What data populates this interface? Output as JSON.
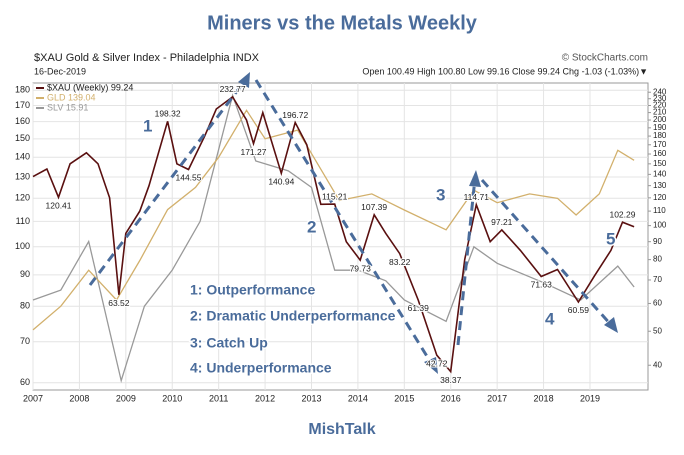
{
  "chart_data": {
    "type": "line",
    "title": "Miners vs the Metals Weekly",
    "symbol_line": "$XAU Gold & Silver Index - Philadelphia INDX",
    "date": "16-Dec-2019",
    "quote": "Open 100.49 High 100.80 Low 99.16 Close 99.24 Chg -1.03 (-1.03%)▼",
    "source": "© StockCharts.com",
    "footer": "MishTalk",
    "annotations": [
      {
        "text": "1"
      },
      {
        "text": "2"
      },
      {
        "text": "3"
      },
      {
        "text": "4"
      },
      {
        "text": "5"
      },
      {
        "text": "1: Outperformance"
      },
      {
        "text": "2: Dramatic Underperformance"
      },
      {
        "text": "3: Catch Up"
      },
      {
        "text": "4: Underperformance"
      }
    ],
    "log_scale": true,
    "grid": true,
    "legend": "upper left",
    "xlim": [
      2007,
      2020.25
    ],
    "xticks": [
      2007,
      2008,
      2009,
      2010,
      2011,
      2012,
      2013,
      2014,
      2015,
      2016,
      2017,
      2018,
      2019
    ],
    "ylim": [
      58.4,
      185
    ],
    "yticks": [
      60,
      70,
      80,
      90,
      100,
      110,
      120,
      130,
      140,
      150,
      160,
      170,
      180
    ],
    "y2lim": [
      34,
      255
    ],
    "y2ticks": [
      40,
      50,
      60,
      70,
      80,
      90,
      100,
      110,
      120,
      130,
      140,
      150,
      160,
      170,
      180,
      190,
      200,
      210,
      220,
      230,
      240
    ],
    "series": [
      {
        "name": "$XAU (Weekly) 99.24",
        "color": "#5a1010",
        "axis": "y2",
        "x": [
          2007.0,
          2007.3,
          2007.55,
          2007.8,
          2008.15,
          2008.4,
          2008.65,
          2008.85,
          2009.0,
          2009.3,
          2009.5,
          2009.9,
          2010.1,
          2010.35,
          2010.7,
          2010.95,
          2011.3,
          2011.6,
          2011.75,
          2011.95,
          2012.35,
          2012.65,
          2012.9,
          2013.2,
          2013.5,
          2013.75,
          2014.05,
          2014.35,
          2014.6,
          2014.9,
          2015.3,
          2015.7,
          2016.0,
          2016.3,
          2016.55,
          2016.85,
          2017.1,
          2017.5,
          2017.95,
          2018.3,
          2018.75,
          2019.1,
          2019.45,
          2019.7,
          2019.95
        ],
        "values": [
          138,
          145,
          120.41,
          150,
          161.27,
          150,
          120,
          63.52,
          95,
          110,
          130,
          198.32,
          150,
          144.55,
          180,
          215,
          232.77,
          200,
          171.27,
          210,
          140.94,
          196.72,
          170,
          115,
          115.21,
          90,
          79.73,
          107.39,
          95,
          83.22,
          61.39,
          42.72,
          38.37,
          80,
          114.71,
          90,
          97.21,
          85,
          71.63,
          75,
          60.59,
          72,
          85,
          102.29,
          99.24
        ],
        "value_labels": [
          null,
          null,
          "120.41",
          null,
          null,
          null,
          null,
          "63.52",
          null,
          null,
          null,
          "198.32",
          null,
          "144.55",
          null,
          null,
          "232.77",
          null,
          "171.27",
          null,
          "140.94",
          "196.72",
          null,
          null,
          "115.21",
          null,
          "79.73",
          "107.39",
          null,
          "83.22",
          "61.39",
          "42.72",
          "38.37",
          null,
          "114.71",
          null,
          "97.21",
          null,
          "71.63",
          null,
          "60.59",
          null,
          null,
          "102.29",
          null
        ]
      },
      {
        "name": "GLD 139.04",
        "color": "#d2b06c",
        "axis": "y",
        "x": [
          2007.0,
          2007.6,
          2008.2,
          2008.8,
          2009.3,
          2009.9,
          2010.5,
          2011.0,
          2011.6,
          2012.0,
          2012.7,
          2013.3,
          2013.6,
          2014.3,
          2015.0,
          2015.9,
          2016.5,
          2017.0,
          2017.7,
          2018.3,
          2018.7,
          2019.2,
          2019.6,
          2019.95
        ],
        "values": [
          73.2,
          80,
          91.6,
          81.9,
          95,
          115,
          125,
          140,
          167,
          150,
          155,
          130,
          119,
          122,
          114.8,
          106.6,
          123.7,
          118,
          122,
          120,
          112.7,
          122,
          143.7,
          138.4
        ]
      },
      {
        "name": "SLV 15.91",
        "color": "#999999",
        "axis": "y",
        "x": [
          2007.0,
          2007.6,
          2008.2,
          2008.9,
          2009.4,
          2010.0,
          2010.6,
          2011.3,
          2011.8,
          2012.5,
          2013.0,
          2013.5,
          2014.0,
          2014.6,
          2015.0,
          2015.9,
          2016.5,
          2017.0,
          2018.0,
          2018.8,
          2019.6,
          2019.95
        ],
        "values": [
          81.9,
          85,
          102,
          60.5,
          80,
          91.6,
          110,
          176.6,
          138,
          133,
          125,
          91.6,
          91.6,
          88,
          81.9,
          75.6,
          100,
          94,
          87.4,
          81.9,
          93,
          86
        ]
      }
    ]
  }
}
